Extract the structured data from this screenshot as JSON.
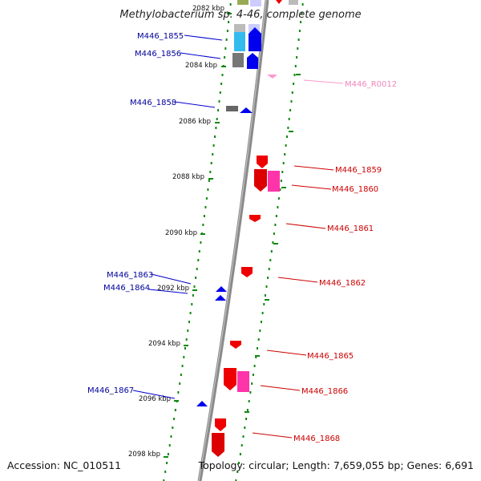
{
  "title": "Methylobacterium sp. 4-46, complete genome",
  "footer": {
    "accession": "Accession: NC_010511",
    "topology": "Topology: circular; Length: 7,659,055 bp; Genes: 6,691"
  },
  "colors": {
    "forward_gene": "#0000ee",
    "reverse_gene": "#ee0000",
    "rna": "#ff99cc",
    "label_forward": "#000099",
    "label_reverse": "#cc0000",
    "label_rna": "#ee88bb",
    "tick": "#118811",
    "backbone": "#8a8a8a"
  },
  "kbp_labels": [
    "2082 kbp",
    "2084 kbp",
    "2086 kbp",
    "2088 kbp",
    "2090 kbp",
    "2092 kbp",
    "2094 kbp",
    "2096 kbp",
    "2098 kbp"
  ],
  "gene_labels": {
    "left": [
      "M446_1855",
      "M446_1856",
      "M446_1858",
      "M446_1863",
      "M446_1864",
      "M446_1867"
    ],
    "right": [
      "M446_R0012",
      "M446_1859",
      "M446_1860",
      "M446_1861",
      "M446_1862",
      "M446_1865",
      "M446_1866",
      "M446_1868"
    ]
  }
}
